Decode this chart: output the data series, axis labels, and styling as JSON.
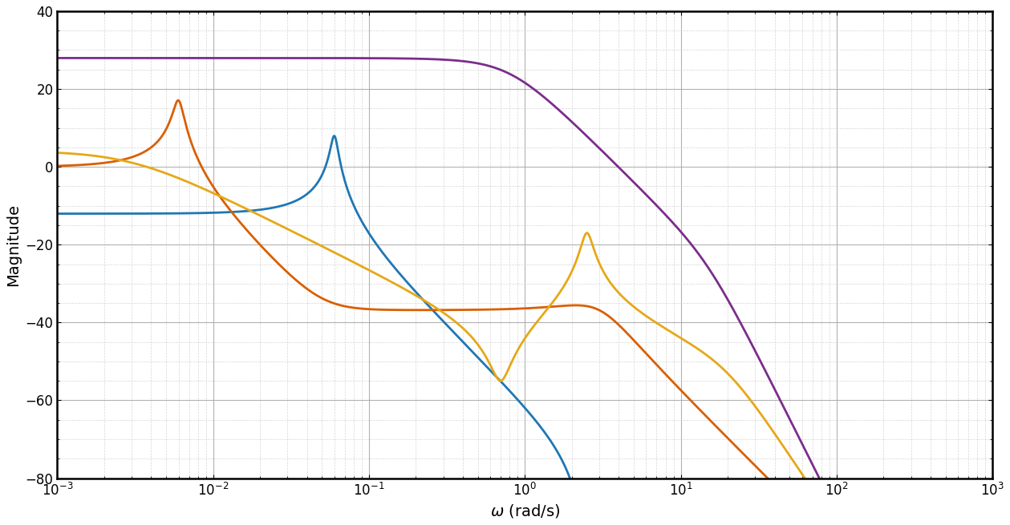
{
  "title": "",
  "xlabel": "$\\omega$ (rad/s)",
  "ylabel": "Magnitude",
  "xlim_log": [
    -3,
    3
  ],
  "ylim": [
    -80,
    40
  ],
  "yticks": [
    -80,
    -60,
    -40,
    -20,
    0,
    20,
    40
  ],
  "colors": [
    "#1f77b4",
    "#d95f02",
    "#7b2d8b",
    "#e6a817"
  ],
  "linewidth": 2.0,
  "grid_major_color": "#aaaaaa",
  "grid_minor_color": "#cccccc",
  "background_color": "#ffffff",
  "figsize": [
    12.59,
    6.55
  ],
  "dpi": 100
}
